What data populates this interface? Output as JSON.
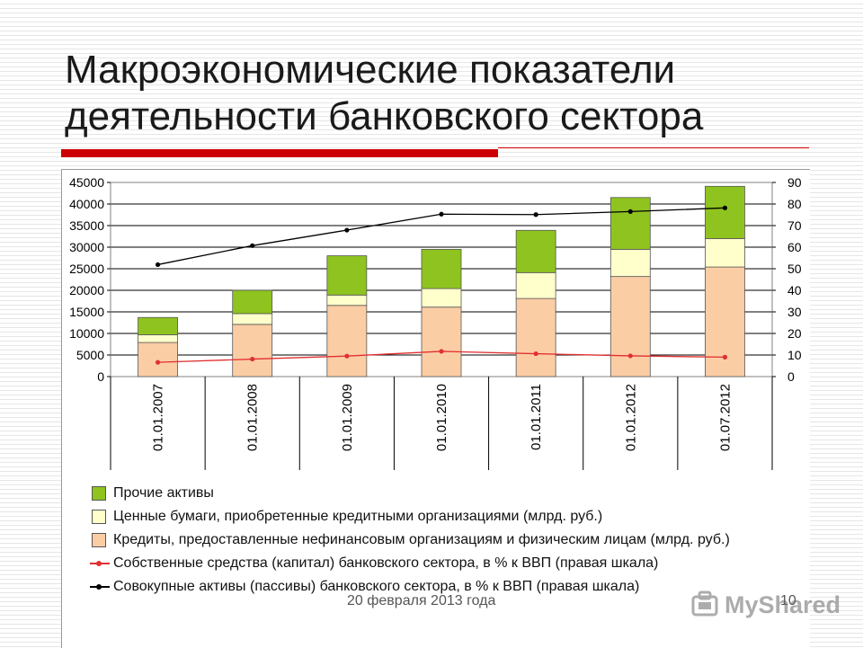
{
  "slide": {
    "title_line1": "Макроэкономические показатели",
    "title_line2": "деятельности банковского сектора",
    "footer_date": "20 февраля 2013 года",
    "page_number": "10",
    "watermark": "MyShared"
  },
  "chart_data": {
    "type": "bar",
    "stacked": true,
    "categories": [
      "01.01.2007",
      "01.01.2008",
      "01.01.2009",
      "01.01.2010",
      "01.01.2011",
      "01.01.2012",
      "01.07.2012"
    ],
    "ylim_left": [
      0,
      45000
    ],
    "yticks_left": [
      0,
      5000,
      10000,
      15000,
      20000,
      25000,
      30000,
      35000,
      40000,
      45000
    ],
    "ylim_right": [
      0,
      90
    ],
    "yticks_right": [
      0,
      10,
      20,
      30,
      40,
      50,
      60,
      70,
      80,
      90
    ],
    "grid": true,
    "legend_position": "bottom",
    "series": [
      {
        "name": "Кредиты, предоставленные нефинансовым организациям и физическим лицам (млрд. руб.)",
        "kind": "bar",
        "axis": "left",
        "color": "#fbcda5",
        "values": [
          7900,
          12100,
          16500,
          16100,
          18100,
          23200,
          25400
        ]
      },
      {
        "name": "Ценные бумаги, приобретенные кредитными организациями (млрд. руб.)",
        "kind": "bar",
        "axis": "left",
        "color": "#ffffcc",
        "values": [
          1800,
          2500,
          2400,
          4300,
          6000,
          6300,
          6600
        ]
      },
      {
        "name": "Прочие активы",
        "kind": "bar",
        "axis": "left",
        "color": "#8fc31f",
        "values": [
          4000,
          5400,
          9100,
          9100,
          9800,
          12000,
          12100
        ]
      },
      {
        "name": "Собственные средства (капитал) банковского сектора, в % к ВВП (правая шкала)",
        "kind": "line",
        "axis": "right",
        "color": "#e03030",
        "values": [
          6.6,
          8.1,
          9.5,
          11.7,
          10.6,
          9.6,
          9.0
        ]
      },
      {
        "name": "Совокупные активы (пассивы) банковского сектора, в % к ВВП (правая шкала)",
        "kind": "line",
        "axis": "right",
        "color": "#000000",
        "values": [
          51.9,
          60.7,
          67.9,
          75.3,
          75.1,
          76.5,
          78.2
        ]
      }
    ],
    "legend_order": [
      2,
      1,
      0,
      3,
      4
    ]
  }
}
